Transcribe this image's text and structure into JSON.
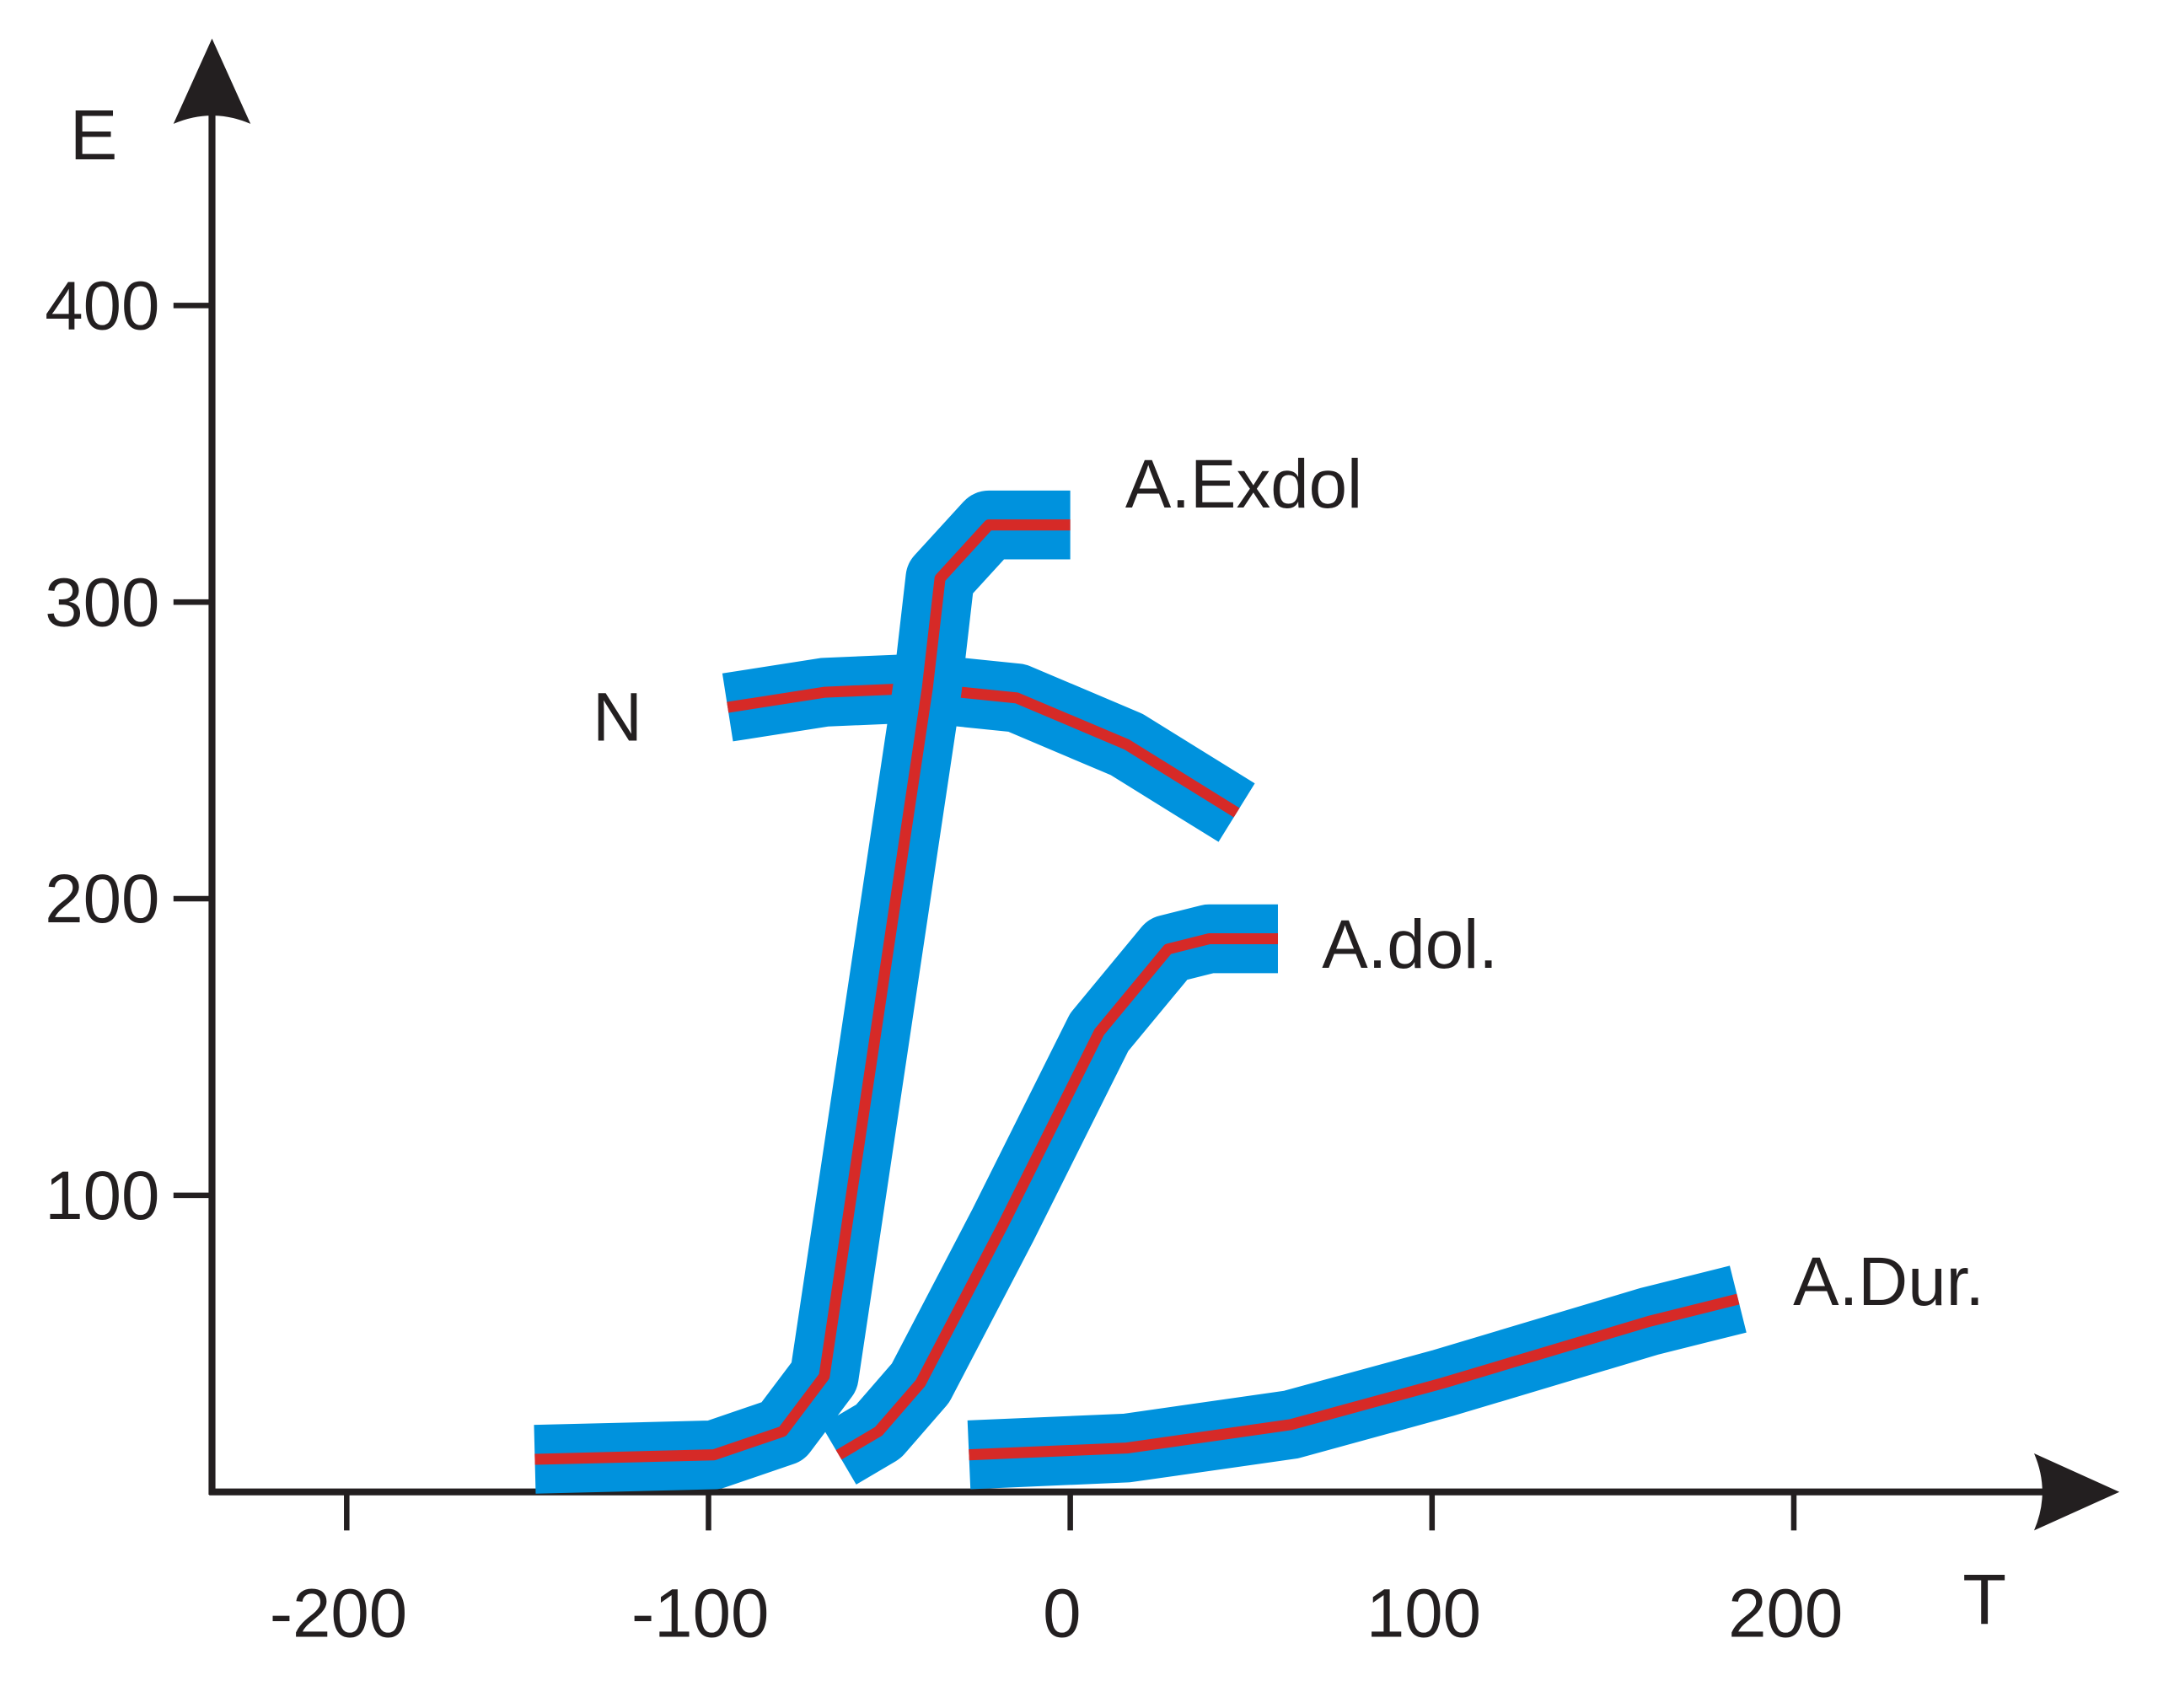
{
  "chart_data": {
    "type": "line",
    "x_label": "T",
    "y_label": "E",
    "xlim": [
      -238,
      290
    ],
    "ylim": [
      0,
      490
    ],
    "xticks": [
      -200,
      -100,
      0,
      100,
      200
    ],
    "yticks": [
      100,
      200,
      300,
      400
    ],
    "axis_color": "#231f20",
    "band_color": "#0092dd",
    "series": [
      {
        "name": "N",
        "color": "#d62a27",
        "x": [
          -94.7,
          -68,
          -41.4,
          -14.8,
          15.6,
          46
        ],
        "values": [
          264.5,
          269.6,
          271,
          267.7,
          252,
          229
        ]
      },
      {
        "name": "A.Exdol",
        "color": "#d62a27",
        "x": [
          -148,
          -98.5,
          -79.5,
          -68,
          -39.5,
          -36,
          -22.5,
          0
        ],
        "values": [
          11,
          12.5,
          20.4,
          39,
          271,
          308,
          326,
          326
        ]
      },
      {
        "name": "A.dol.",
        "color": "#d62a27",
        "x": [
          -64,
          -53,
          -41.4,
          -18.6,
          8,
          27,
          38.4,
          57.4
        ],
        "values": [
          12.5,
          20.4,
          36.7,
          90,
          155,
          183,
          186.5,
          186.5
        ]
      },
      {
        "name": "A.Dur.",
        "color": "#d62a27",
        "x": [
          -28,
          15.6,
          61,
          103,
          160,
          184.6
        ],
        "values": [
          12.5,
          14.8,
          22.7,
          36.7,
          57.5,
          65
        ]
      }
    ]
  }
}
